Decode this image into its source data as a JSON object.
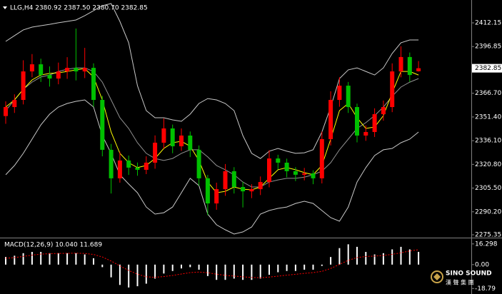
{
  "chart_data": [
    {
      "type": "candlestick",
      "title": "LLG,H4  2380.92 2387.50 2380.70 2382.85",
      "up_color": "#ff0000",
      "down_color": "#00c000",
      "open": [
        2352.0,
        2357.8,
        2362.4,
        2380.8,
        2385.4,
        2378.5,
        2376.2,
        2380.8,
        2383.1,
        2380.8,
        2383.1,
        2362.4,
        2330.2,
        2311.8,
        2323.3,
        2318.7,
        2317.3,
        2321.9,
        2334.8,
        2344.0,
        2332.5,
        2339.4,
        2330.2,
        2311.8,
        2295.6,
        2304.8,
        2316.4,
        2306.2,
        2303.4,
        2304.8,
        2309.4,
        2324.6,
        2321.9,
        2316.4,
        2314.1,
        2315.0,
        2311.8,
        2337.1,
        2362.4,
        2371.6,
        2357.8,
        2339.4,
        2341.7,
        2353.2,
        2357.8,
        2380.8,
        2390.1,
        2380.92
      ],
      "high": [
        2361.5,
        2366.0,
        2388.0,
        2392.0,
        2389.0,
        2384.0,
        2386.5,
        2390.0,
        2408.5,
        2396.0,
        2386.0,
        2365.0,
        2334.0,
        2329.0,
        2326.5,
        2322.0,
        2326.0,
        2339.5,
        2350.5,
        2346.5,
        2344.0,
        2342.0,
        2333.0,
        2314.0,
        2309.0,
        2321.0,
        2319.0,
        2309.5,
        2308.0,
        2313.0,
        2330.0,
        2327.0,
        2324.5,
        2319.0,
        2318.5,
        2317.0,
        2342.0,
        2368.0,
        2377.0,
        2374.0,
        2360.0,
        2346.0,
        2357.0,
        2362.0,
        2386.0,
        2397.0,
        2393.0,
        2387.5
      ],
      "low": [
        2347.0,
        2354.0,
        2359.5,
        2377.0,
        2374.0,
        2371.0,
        2372.5,
        2376.0,
        2375.0,
        2376.5,
        2358.0,
        2326.0,
        2302.0,
        2309.0,
        2314.0,
        2313.5,
        2314.5,
        2318.0,
        2331.0,
        2328.0,
        2329.5,
        2325.5,
        2307.0,
        2288.0,
        2291.5,
        2300.5,
        2302.0,
        2293.0,
        2299.0,
        2301.0,
        2306.0,
        2317.5,
        2312.5,
        2310.0,
        2310.5,
        2308.0,
        2308.5,
        2333.0,
        2358.0,
        2354.0,
        2335.0,
        2336.0,
        2338.5,
        2349.0,
        2354.5,
        2377.0,
        2374.0,
        2380.7
      ],
      "close": [
        2357.8,
        2362.4,
        2380.8,
        2385.4,
        2378.5,
        2376.2,
        2380.8,
        2383.1,
        2380.8,
        2383.1,
        2362.4,
        2330.2,
        2311.8,
        2323.3,
        2318.7,
        2317.3,
        2321.9,
        2334.8,
        2344.0,
        2332.5,
        2339.4,
        2330.2,
        2311.8,
        2295.6,
        2304.8,
        2316.4,
        2306.2,
        2303.4,
        2304.8,
        2309.4,
        2324.6,
        2321.9,
        2316.4,
        2314.1,
        2315.0,
        2311.8,
        2337.1,
        2362.4,
        2371.6,
        2357.8,
        2339.4,
        2341.7,
        2353.2,
        2357.8,
        2380.8,
        2390.1,
        2378.5,
        2382.85
      ],
      "overlays": [
        {
          "color": "#c8c8c8",
          "values": [
            2400.2,
            2403.9,
            2407.6,
            2409.4,
            2410.3,
            2411.2,
            2412.2,
            2413.1,
            2414.0,
            2416.8,
            2420.0,
            2423.2,
            2424.6,
            2413.1,
            2399.3,
            2371.6,
            2355.5,
            2350.9,
            2350.9,
            2349.5,
            2348.6,
            2353.2,
            2360.1,
            2363.3,
            2362.4,
            2360.1,
            2355.5,
            2339.4,
            2327.9,
            2324.6,
            2329.3,
            2331.1,
            2329.3,
            2327.9,
            2328.3,
            2330.2,
            2341.7,
            2357.8,
            2376.2,
            2381.8,
            2383.1,
            2380.8,
            2378.5,
            2383.1,
            2392.4,
            2399.3,
            2401.1,
            2401.1
          ]
        },
        {
          "color": "#c8c8c8",
          "values": [
            2314.1,
            2320.1,
            2327.9,
            2337.1,
            2346.3,
            2353.2,
            2357.8,
            2360.1,
            2361.5,
            2362.4,
            2357.8,
            2339.4,
            2327.9,
            2314.1,
            2308.1,
            2302.5,
            2293.3,
            2288.7,
            2289.6,
            2293.3,
            2302.5,
            2311.8,
            2307.1,
            2288.7,
            2281.8,
            2278.6,
            2275.8,
            2277.2,
            2280.4,
            2288.7,
            2291.0,
            2292.4,
            2293.3,
            2295.6,
            2297.0,
            2295.6,
            2291.0,
            2286.4,
            2284.1,
            2293.3,
            2309.4,
            2318.7,
            2326.5,
            2330.2,
            2331.1,
            2334.8,
            2337.1,
            2341.7
          ]
        },
        {
          "color": "#909090",
          "values": [
            2355.5,
            2362.4,
            2369.3,
            2373.9,
            2377.2,
            2378.5,
            2380.8,
            2382.2,
            2383.1,
            2383.1,
            2380.8,
            2373.9,
            2362.4,
            2350.9,
            2344.0,
            2334.8,
            2327.9,
            2324.6,
            2323.3,
            2324.6,
            2327.9,
            2330.2,
            2330.2,
            2325.6,
            2320.1,
            2317.3,
            2314.1,
            2309.4,
            2306.2,
            2306.2,
            2309.4,
            2310.8,
            2311.8,
            2311.8,
            2312.6,
            2314.1,
            2316.4,
            2321.9,
            2330.2,
            2337.1,
            2344.0,
            2347.7,
            2352.3,
            2357.8,
            2364.7,
            2370.7,
            2373.9,
            2376.2
          ]
        },
        {
          "color": "#ffff00",
          "values": [
            2357.8,
            2362.4,
            2369.3,
            2375.3,
            2378.5,
            2379.5,
            2379.9,
            2380.8,
            2381.8,
            2382.7,
            2377.2,
            2362.4,
            2341.7,
            2327.9,
            2321.9,
            2318.7,
            2320.1,
            2324.6,
            2331.1,
            2334.8,
            2335.7,
            2332.5,
            2323.3,
            2309.4,
            2302.5,
            2303.4,
            2306.2,
            2304.8,
            2304.4,
            2306.2,
            2311.8,
            2317.3,
            2318.7,
            2317.3,
            2315.5,
            2314.1,
            2320.1,
            2337.1,
            2355.5,
            2360.1,
            2350.9,
            2344.0,
            2344.9,
            2352.3,
            2367.0,
            2380.8,
            2380.8,
            2378.5
          ]
        }
      ],
      "ylim": [
        2274.9,
        2426.9
      ],
      "yticks": [
        2412.15,
        2396.85,
        2382.85,
        {
          "value": 2366.7,
          "label": "2366.70"
        },
        {
          "value": 2351.4,
          "label": "2351.40"
        },
        {
          "value": 2336.1,
          "label": "2336.10"
        },
        {
          "value": 2320.8,
          "label": "2320.80"
        },
        {
          "value": 2305.5,
          "label": "2305.50"
        },
        {
          "value": 2290.2,
          "label": "2290.20"
        },
        2275.35
      ]
    },
    {
      "type": "macd",
      "title": "MACD(12,26,9) 10.040 11.689",
      "series": [
        {
          "type": "histogram",
          "color": "#ffffff",
          "values": [
            6,
            7,
            9,
            10,
            10,
            9,
            9,
            9,
            9,
            8,
            5,
            -2,
            -10,
            -16,
            -18,
            -17,
            -15,
            -11,
            -7,
            -5,
            -3,
            -2,
            -4,
            -9,
            -12,
            -12,
            -11,
            -12,
            -12,
            -11,
            -8,
            -6,
            -5,
            -5,
            -4,
            -4,
            -1,
            6,
            13,
            16,
            14,
            10,
            8,
            9,
            12,
            14,
            12,
            10.04
          ]
        },
        {
          "type": "line",
          "color": "#ff0000",
          "values": [
            5,
            5.5,
            6.5,
            7.5,
            8.3,
            8.6,
            8.8,
            8.9,
            9,
            8.8,
            8,
            6,
            2.8,
            -1,
            -4.6,
            -7.5,
            -9.6,
            -10,
            -9.4,
            -8.5,
            -7.4,
            -6.3,
            -5.8,
            -6.4,
            -7.5,
            -8.4,
            -9,
            -9.6,
            -10.1,
            -10.3,
            -9.8,
            -9.1,
            -8.3,
            -7.6,
            -6.9,
            -6.3,
            -5.3,
            -3,
            0.2,
            3.4,
            5.5,
            6.4,
            6.7,
            7.2,
            8.1,
            9.3,
            10.8,
            11.689
          ]
        }
      ],
      "ylim": [
        -22,
        19
      ],
      "yticks": [
        16.298,
        {
          "value": 0,
          "label": "0.00"
        },
        -18.79
      ]
    }
  ],
  "logo": {
    "name": "SINO SOUND",
    "subtitle": "漢 聲 集 團"
  }
}
